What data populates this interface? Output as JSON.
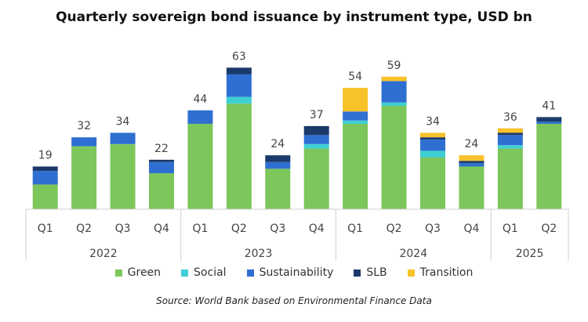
{
  "colors": {
    "Green": "#7dc65b",
    "Social": "#3fcfd3",
    "Sustainability": "#2f6fd1",
    "SLB": "#1b3a6b",
    "Transition": "#f8c22b"
  },
  "chart_data": {
    "type": "bar",
    "stacked": true,
    "title": "Quarterly sovereign bond issuance by instrument type, USD bn",
    "source": "Source: World Bank based on Environmental Finance Data",
    "categories": [
      "Q1",
      "Q2",
      "Q3",
      "Q4",
      "Q1",
      "Q2",
      "Q3",
      "Q4",
      "Q1",
      "Q2",
      "Q3",
      "Q4",
      "Q1",
      "Q2"
    ],
    "year_groups": [
      {
        "label": "2022",
        "count": 4
      },
      {
        "label": "2023",
        "count": 4
      },
      {
        "label": "2024",
        "count": 4
      },
      {
        "label": "2025",
        "count": 2
      }
    ],
    "totals": [
      19,
      32,
      34,
      22,
      44,
      63,
      24,
      37,
      54,
      59,
      34,
      24,
      36,
      41
    ],
    "ylim": [
      0,
      68
    ],
    "series": [
      {
        "name": "Green",
        "values": [
          11,
          28,
          29,
          16,
          38,
          47,
          18,
          27,
          38,
          46,
          23,
          19,
          27,
          38
        ]
      },
      {
        "name": "Social",
        "values": [
          0,
          0,
          0,
          0,
          0,
          3,
          0,
          2,
          1.5,
          1.5,
          3,
          0,
          1.5,
          0
        ]
      },
      {
        "name": "Sustainability",
        "values": [
          6,
          4,
          5,
          5,
          6,
          10,
          3,
          4,
          4,
          9.5,
          5,
          1.5,
          4.5,
          1
        ]
      },
      {
        "name": "SLB",
        "values": [
          2,
          0,
          0,
          1,
          0,
          3,
          3,
          4,
          0,
          0,
          1,
          1,
          1,
          2
        ]
      },
      {
        "name": "Transition",
        "values": [
          0,
          0,
          0,
          0,
          0,
          0,
          0,
          0,
          10.5,
          2,
          2,
          2.5,
          2,
          0
        ]
      }
    ],
    "legend": [
      "Green",
      "Social",
      "Sustainability",
      "SLB",
      "Transition"
    ],
    "legend_position": "bottom",
    "grid": false
  }
}
